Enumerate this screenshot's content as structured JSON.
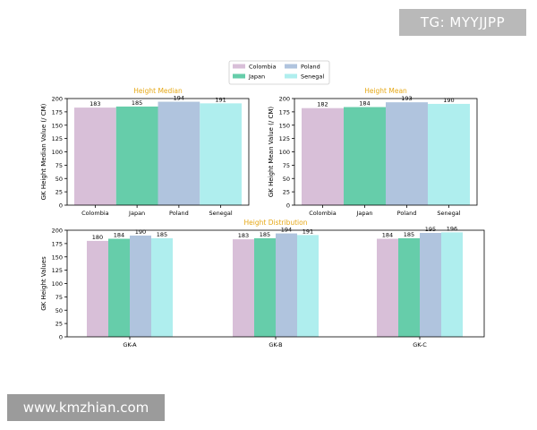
{
  "watermarks": {
    "top_right": "TG: MYYJJPP",
    "bottom_left": "www.kmzhian.com"
  },
  "colors": {
    "Colombia": "#d8bfd8",
    "Japan": "#66cdaa",
    "Poland": "#b0c4de",
    "Senegal": "#afeeee",
    "title": "#e6a817"
  },
  "legend": {
    "placement": "top-center",
    "entries": [
      "Colombia",
      "Japan",
      "Poland",
      "Senegal"
    ]
  },
  "chart_data": [
    {
      "type": "bar",
      "title": "Height Median",
      "xlabel": "",
      "ylabel": "GK Height Median Value (/ CM)",
      "categories": [
        "Colombia",
        "Japan",
        "Poland",
        "Senegal"
      ],
      "values": [
        183,
        185,
        194,
        191
      ],
      "ylim": [
        0,
        200
      ],
      "yticks": [
        0,
        25,
        50,
        75,
        100,
        125,
        150,
        175,
        200
      ]
    },
    {
      "type": "bar",
      "title": "Height Mean",
      "xlabel": "",
      "ylabel": "GK Height Mean Value (/ CM)",
      "categories": [
        "Colombia",
        "Japan",
        "Poland",
        "Senegal"
      ],
      "values": [
        182,
        184,
        193,
        190
      ],
      "ylim": [
        0,
        200
      ],
      "yticks": [
        0,
        25,
        50,
        75,
        100,
        125,
        150,
        175,
        200
      ]
    },
    {
      "type": "bar",
      "title": "Height Distribution",
      "xlabel": "",
      "ylabel": "GK Height Values",
      "categories": [
        "GK-A",
        "GK-B",
        "GK-C"
      ],
      "series": [
        {
          "name": "Colombia",
          "values": [
            180,
            183,
            184
          ]
        },
        {
          "name": "Japan",
          "values": [
            184,
            185,
            185
          ]
        },
        {
          "name": "Poland",
          "values": [
            190,
            194,
            195
          ]
        },
        {
          "name": "Senegal",
          "values": [
            185,
            191,
            196
          ]
        }
      ],
      "ylim": [
        0,
        200
      ],
      "yticks": [
        0,
        25,
        50,
        75,
        100,
        125,
        150,
        175,
        200
      ]
    }
  ]
}
